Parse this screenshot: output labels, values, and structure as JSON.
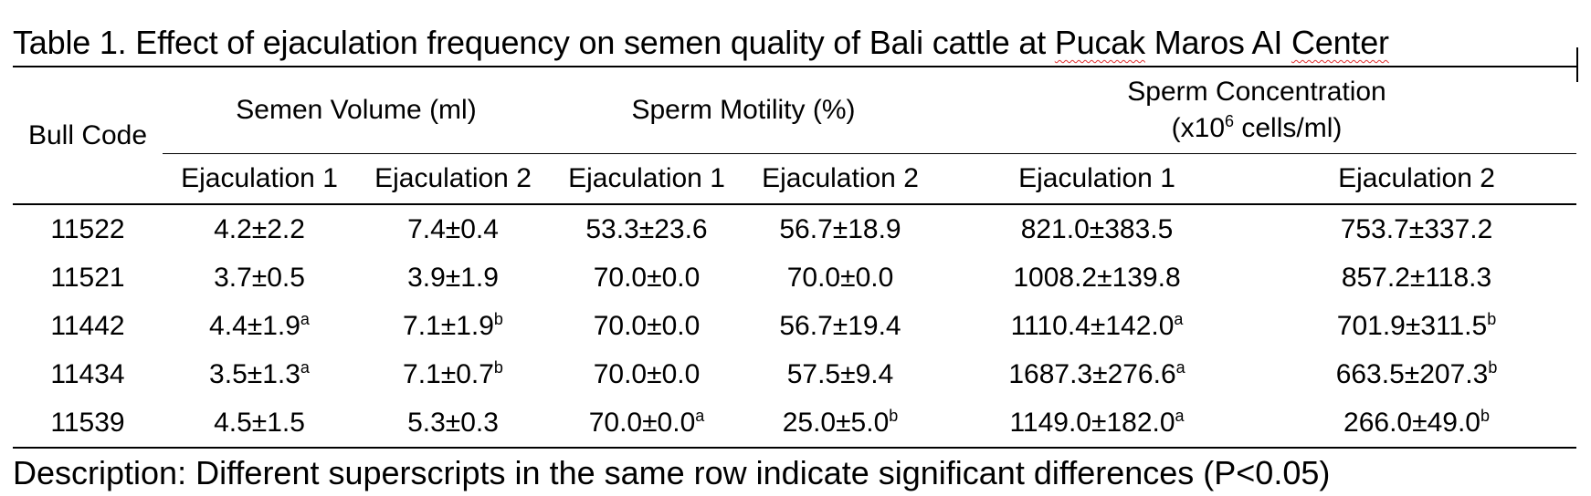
{
  "caption": {
    "prefix": "Table 1. Effect of ejaculation frequency on semen quality of Bali cattle at ",
    "word_pucak": "Pucak",
    "word_maros": " Maros AI ",
    "word_center": "Center"
  },
  "table": {
    "row_header": "Bull Code",
    "groups": [
      {
        "label": "Semen Volume (ml)"
      },
      {
        "label": "Sperm Motility (%)"
      },
      {
        "label_line1": "Sperm Concentration",
        "label_prefix": "(x10",
        "label_sup": "6",
        "label_suffix": " cells/ml)"
      }
    ],
    "subheaders": [
      "Ejaculation 1",
      "Ejaculation 2",
      "Ejaculation 1",
      "Ejaculation 2",
      "Ejaculation 1",
      "Ejaculation 2"
    ],
    "rows": [
      {
        "code": "11522",
        "cells": [
          {
            "v": "4.2±2.2",
            "s": ""
          },
          {
            "v": "7.4±0.4",
            "s": ""
          },
          {
            "v": "53.3±23.6",
            "s": ""
          },
          {
            "v": "56.7±18.9",
            "s": ""
          },
          {
            "v": "821.0±383.5",
            "s": ""
          },
          {
            "v": "753.7±337.2",
            "s": ""
          }
        ]
      },
      {
        "code": "11521",
        "cells": [
          {
            "v": "3.7±0.5",
            "s": ""
          },
          {
            "v": "3.9±1.9",
            "s": ""
          },
          {
            "v": "70.0±0.0",
            "s": ""
          },
          {
            "v": "70.0±0.0",
            "s": ""
          },
          {
            "v": "1008.2±139.8",
            "s": ""
          },
          {
            "v": "857.2±118.3",
            "s": ""
          }
        ]
      },
      {
        "code": "11442",
        "cells": [
          {
            "v": "4.4±1.9",
            "s": "a"
          },
          {
            "v": "7.1±1.9",
            "s": "b"
          },
          {
            "v": "70.0±0.0",
            "s": ""
          },
          {
            "v": "56.7±19.4",
            "s": ""
          },
          {
            "v": "1110.4±142.0",
            "s": "a"
          },
          {
            "v": "701.9±311.5",
            "s": "b"
          }
        ]
      },
      {
        "code": "11434",
        "cells": [
          {
            "v": "3.5±1.3",
            "s": "a"
          },
          {
            "v": "7.1±0.7",
            "s": "b"
          },
          {
            "v": "70.0±0.0",
            "s": ""
          },
          {
            "v": "57.5±9.4",
            "s": ""
          },
          {
            "v": "1687.3±276.6",
            "s": "a"
          },
          {
            "v": "663.5±207.3",
            "s": "b"
          }
        ]
      },
      {
        "code": "11539",
        "cells": [
          {
            "v": "4.5±1.5",
            "s": ""
          },
          {
            "v": "5.3±0.3",
            "s": ""
          },
          {
            "v": "70.0±0.0",
            "s": "a"
          },
          {
            "v": "25.0±5.0",
            "s": "b"
          },
          {
            "v": "1149.0±182.0",
            "s": "a"
          },
          {
            "v": "266.0±49.0",
            "s": "b"
          }
        ]
      }
    ]
  },
  "footnote": "Description: Different superscripts in the same row indicate significant differences (P<0.05)"
}
